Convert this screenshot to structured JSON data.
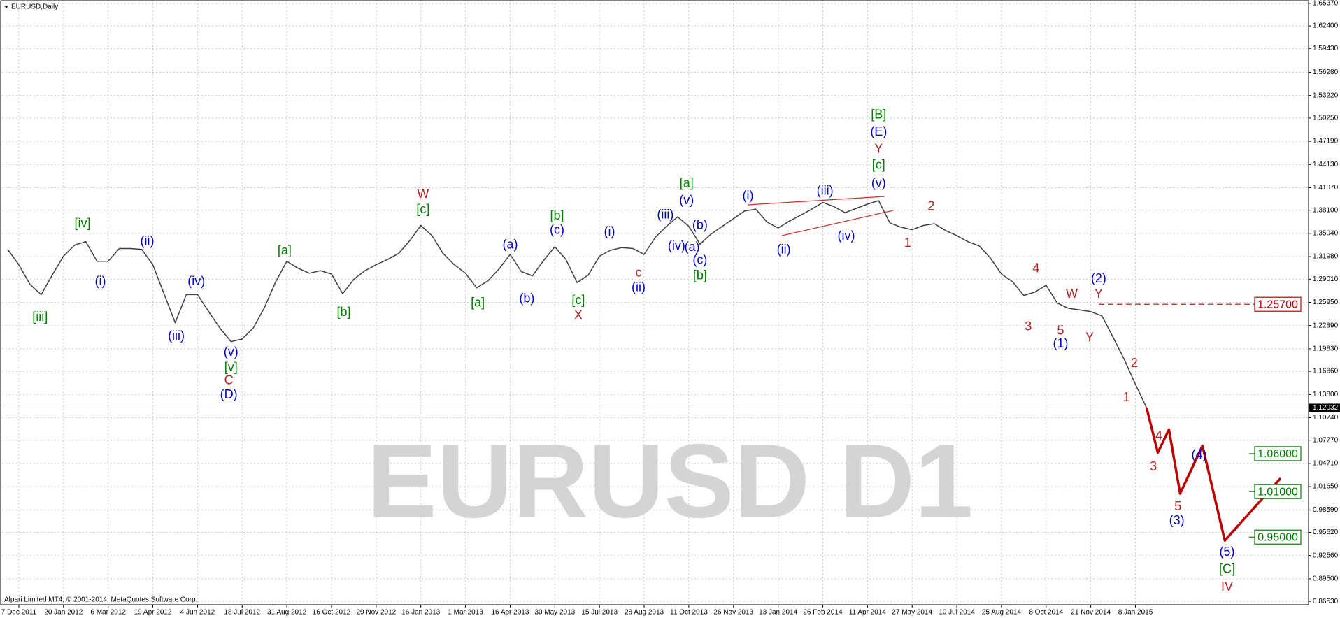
{
  "chart_data": {
    "type": "line",
    "title": "EURUSD,Daily",
    "watermark": "EURUSD D1",
    "footer": "Alpari Limited MT4, © 2001-2014, MetaQuotes Software Corp.",
    "categories": [
      null,
      "7 Dec 2011",
      null,
      null,
      null,
      "20 Jan 2012",
      null,
      null,
      null,
      "6 Mar 2012",
      null,
      null,
      null,
      "19 Apr 2012",
      null,
      null,
      null,
      "4 Jun 2012",
      null,
      null,
      null,
      "18 Jul 2012",
      null,
      null,
      null,
      "31 Aug 2012",
      null,
      null,
      null,
      "16 Oct 2012",
      null,
      null,
      null,
      "29 Nov 2012",
      null,
      null,
      null,
      "16 Jan 2013",
      null,
      null,
      null,
      "1 Mar 2013",
      null,
      null,
      null,
      "16 Apr 2013",
      null,
      null,
      null,
      "30 May 2013",
      null,
      null,
      null,
      "15 Jul 2013",
      null,
      null,
      null,
      "28 Aug 2013",
      null,
      null,
      null,
      "11 Oct 2013",
      null,
      null,
      null,
      "26 Nov 2013",
      null,
      null,
      null,
      "13 Jan 2014",
      null,
      null,
      null,
      "26 Feb 2014",
      null,
      null,
      null,
      "11 Apr 2014",
      null,
      null,
      null,
      "27 May 2014",
      null,
      null,
      null,
      "10 Jul 2014",
      null,
      null,
      null,
      "25 Aug 2014",
      null,
      null,
      null,
      "8 Oct 2014",
      null,
      null,
      null,
      "21 Nov 2014",
      null,
      null,
      null,
      "8 Jan 2015",
      null,
      null,
      null,
      null,
      null,
      null,
      null,
      null,
      null,
      null,
      null,
      null,
      null,
      null,
      null
    ],
    "series": [
      {
        "color": "#404040",
        "width": 1.5,
        "values": [
          1.3294,
          1.3091,
          1.2832,
          1.2697,
          1.2956,
          1.3204,
          1.335,
          1.3395,
          1.3136,
          1.3136,
          1.3305,
          1.3305,
          1.3294,
          1.3091,
          1.2709,
          1.2326,
          1.2697,
          1.2697,
          1.2472,
          1.2258,
          1.2078,
          1.2112,
          1.2258,
          1.2528,
          1.2866,
          1.3136,
          1.3046,
          1.2979,
          1.3013,
          1.2968,
          1.2709,
          1.29,
          1.3013,
          1.3091,
          1.3159,
          1.3238,
          1.3407,
          1.3609,
          1.3474,
          1.3238,
          1.3091,
          1.2979,
          1.2787,
          1.2877,
          1.3035,
          1.3227,
          1.3001,
          1.2945,
          1.3148,
          1.3328,
          1.3159,
          1.2855,
          1.2956,
          1.3204,
          1.3283,
          1.3317,
          1.3305,
          1.3227,
          1.3452,
          1.3598,
          1.3722,
          1.3598,
          1.3362,
          1.3497,
          1.3598,
          1.3699,
          1.3801,
          1.3823,
          1.3654,
          1.3576,
          1.3666,
          1.3744,
          1.3823,
          1.3913,
          1.3857,
          1.3778,
          1.3835,
          1.3891,
          1.3936,
          1.3643,
          1.3587,
          1.3553,
          1.3609,
          1.3632,
          1.3542,
          1.3474,
          1.3395,
          1.3339,
          1.3181,
          1.2968,
          1.2866,
          1.2686,
          1.2731,
          1.2821,
          1.2585,
          1.2517,
          1.2495,
          1.2472,
          1.2416,
          1.2134,
          1.1842,
          1.1515,
          1.1203,
          null,
          null,
          null,
          null,
          null,
          null,
          null,
          null,
          null,
          null,
          null,
          null,
          null,
          null
        ]
      },
      {
        "color": "#c00000",
        "width": 3.5,
        "values": [
          null,
          null,
          null,
          null,
          null,
          null,
          null,
          null,
          null,
          null,
          null,
          null,
          null,
          null,
          null,
          null,
          null,
          null,
          null,
          null,
          null,
          null,
          null,
          null,
          null,
          null,
          null,
          null,
          null,
          null,
          null,
          null,
          null,
          null,
          null,
          null,
          null,
          null,
          null,
          null,
          null,
          null,
          null,
          null,
          null,
          null,
          null,
          null,
          null,
          null,
          null,
          null,
          null,
          null,
          null,
          null,
          null,
          null,
          null,
          null,
          null,
          null,
          null,
          null,
          null,
          null,
          null,
          null,
          null,
          null,
          null,
          null,
          null,
          null,
          null,
          null,
          null,
          null,
          null,
          null,
          null,
          null,
          null,
          null,
          null,
          null,
          null,
          null,
          null,
          null,
          null,
          null,
          null,
          null,
          null,
          null,
          null,
          null,
          null,
          null,
          null,
          null,
          1.1203,
          1.0614,
          1.0918,
          1.0074,
          1.0389,
          1.0704,
          1.0079,
          0.9454,
          0.9618,
          0.9783,
          0.9947,
          1.0112,
          1.0276,
          null,
          null
        ]
      }
    ],
    "ylim": [
      0.8608,
      1.6582
    ],
    "yticks": [
      {
        "value": 1.6537,
        "label": "1.65370"
      },
      {
        "value": 1.624,
        "label": "1.62400"
      },
      {
        "value": 1.5943,
        "label": "1.59430"
      },
      {
        "value": 1.5628,
        "label": "1.56280"
      },
      {
        "value": 1.5322,
        "label": "1.53220"
      },
      {
        "value": 1.5025,
        "label": "1.50250"
      },
      {
        "value": 1.4719,
        "label": "1.47190"
      },
      {
        "value": 1.4413,
        "label": "1.44130"
      },
      {
        "value": 1.4107,
        "label": "1.41070"
      },
      {
        "value": 1.381,
        "label": "1.38100"
      },
      {
        "value": 1.3504,
        "label": "1.35040"
      },
      {
        "value": 1.3198,
        "label": "1.31980"
      },
      {
        "value": 1.2901,
        "label": "1.29010"
      },
      {
        "value": 1.2595,
        "label": "1.25950"
      },
      {
        "value": 1.2289,
        "label": "1.22890"
      },
      {
        "value": 1.1983,
        "label": "1.19830"
      },
      {
        "value": 1.1686,
        "label": "1.16860"
      },
      {
        "value": 1.138,
        "label": "1.13800"
      },
      {
        "value": 1.1074,
        "label": "1.10740"
      },
      {
        "value": 1.0777,
        "label": "1.07770"
      },
      {
        "value": 1.0471,
        "label": "1.04710"
      },
      {
        "value": 1.0165,
        "label": "1.01650"
      },
      {
        "value": 0.9859,
        "label": "0.98590"
      },
      {
        "value": 0.9562,
        "label": "0.95620"
      },
      {
        "value": 0.9256,
        "label": "0.92560"
      },
      {
        "value": 0.895,
        "label": "0.89500"
      },
      {
        "value": 0.8653,
        "label": "0.86530"
      }
    ],
    "grid": true,
    "last_price": {
      "value": 1.12032,
      "label": "1.12032"
    },
    "levels": [
      {
        "value": 1.257,
        "label": "1.25700",
        "color": "#c00000",
        "style": "dashed"
      },
      {
        "value": 1.06,
        "label": "1.06000",
        "color": "#008000",
        "style": "solid"
      },
      {
        "value": 1.01,
        "label": "1.01000",
        "color": "#008000",
        "style": "solid"
      },
      {
        "value": 0.95,
        "label": "0.95000",
        "color": "#008000",
        "style": "solid"
      }
    ],
    "annotations": [
      {
        "text": "[iv]",
        "color": "#008000",
        "x": 6.7,
        "y": 1.3632
      },
      {
        "text": "[iii]",
        "color": "#008000",
        "x": 2.9,
        "y": 1.2393
      },
      {
        "text": "(i)",
        "color": "#0000cc",
        "x": 8.3,
        "y": 1.2866
      },
      {
        "text": "(ii)",
        "color": "#0000cc",
        "x": 12.5,
        "y": 1.3395
      },
      {
        "text": "(iii)",
        "color": "#0000cc",
        "x": 15.1,
        "y": 1.2146
      },
      {
        "text": "(iv)",
        "color": "#0000cc",
        "x": 16.9,
        "y": 1.2866
      },
      {
        "text": "(v)",
        "color": "#0000cc",
        "x": 20.0,
        "y": 1.1932
      },
      {
        "text": "[v]",
        "color": "#008000",
        "x": 20.0,
        "y": 1.1729
      },
      {
        "text": "C",
        "color": "#b22222",
        "x": 19.8,
        "y": 1.156
      },
      {
        "text": "(D)",
        "color": "#0000cc",
        "x": 19.8,
        "y": 1.1369
      },
      {
        "text": "[a]",
        "color": "#008000",
        "x": 24.8,
        "y": 1.3272
      },
      {
        "text": "[b]",
        "color": "#008000",
        "x": 30.1,
        "y": 1.2461
      },
      {
        "text": "W",
        "color": "#b22222",
        "x": 37.2,
        "y": 1.4015
      },
      {
        "text": "[c]",
        "color": "#008000",
        "x": 37.2,
        "y": 1.3812
      },
      {
        "text": "[a]",
        "color": "#008000",
        "x": 42.1,
        "y": 1.2585
      },
      {
        "text": "(a)",
        "color": "#0000cc",
        "x": 45.0,
        "y": 1.335
      },
      {
        "text": "(b)",
        "color": "#0000cc",
        "x": 46.5,
        "y": 1.2641
      },
      {
        "text": "[b]",
        "color": "#008000",
        "x": 49.2,
        "y": 1.3733
      },
      {
        "text": "(c)",
        "color": "#0000cc",
        "x": 49.2,
        "y": 1.3542
      },
      {
        "text": "[c]",
        "color": "#008000",
        "x": 51.1,
        "y": 1.2618
      },
      {
        "text": "X",
        "color": "#b22222",
        "x": 51.1,
        "y": 1.2416
      },
      {
        "text": "(i)",
        "color": "#0000cc",
        "x": 53.9,
        "y": 1.3519
      },
      {
        "text": "c",
        "color": "#b22222",
        "x": 56.5,
        "y": 1.2979
      },
      {
        "text": "(ii)",
        "color": "#0000cc",
        "x": 56.5,
        "y": 1.2787
      },
      {
        "text": "(iii)",
        "color": "#0000cc",
        "x": 58.9,
        "y": 1.3744
      },
      {
        "text": "[a]",
        "color": "#008000",
        "x": 60.8,
        "y": 1.4161
      },
      {
        "text": "(v)",
        "color": "#0000cc",
        "x": 60.8,
        "y": 1.3936
      },
      {
        "text": "(iv)",
        "color": "#0000cc",
        "x": 59.9,
        "y": 1.3328
      },
      {
        "text": "(b)",
        "color": "#0000cc",
        "x": 62.0,
        "y": 1.3609
      },
      {
        "text": "(a)",
        "color": "#0000cc",
        "x": 61.3,
        "y": 1.3317
      },
      {
        "text": "(c)",
        "color": "#0000cc",
        "x": 62.0,
        "y": 1.3148
      },
      {
        "text": "[b]",
        "color": "#008000",
        "x": 62.0,
        "y": 1.2945
      },
      {
        "text": "(i)",
        "color": "#0000cc",
        "x": 66.3,
        "y": 1.3992
      },
      {
        "text": "(ii)",
        "color": "#0000cc",
        "x": 69.5,
        "y": 1.3283
      },
      {
        "text": "(iii)",
        "color": "#0000cc",
        "x": 73.2,
        "y": 1.406
      },
      {
        "text": "(iv)",
        "color": "#0000cc",
        "x": 75.1,
        "y": 1.3463
      },
      {
        "text": "(v)",
        "color": "#0000cc",
        "x": 78.0,
        "y": 1.4161
      },
      {
        "text": "[c]",
        "color": "#008000",
        "x": 78.0,
        "y": 1.4398
      },
      {
        "text": "Y",
        "color": "#b22222",
        "x": 78.0,
        "y": 1.4611
      },
      {
        "text": "(E)",
        "color": "#0000cc",
        "x": 78.0,
        "y": 1.4837
      },
      {
        "text": "[B]",
        "color": "#008000",
        "x": 78.0,
        "y": 1.5062
      },
      {
        "text": "1",
        "color": "#b22222",
        "x": 80.6,
        "y": 1.3373
      },
      {
        "text": "2",
        "color": "#b22222",
        "x": 82.7,
        "y": 1.3857
      },
      {
        "text": "3",
        "color": "#b22222",
        "x": 91.4,
        "y": 1.2269
      },
      {
        "text": "4",
        "color": "#b22222",
        "x": 92.1,
        "y": 1.3035
      },
      {
        "text": "5",
        "color": "#b22222",
        "x": 94.3,
        "y": 1.2213
      },
      {
        "text": "(1)",
        "color": "#0000cc",
        "x": 94.3,
        "y": 1.2044
      },
      {
        "text": "W",
        "color": "#b22222",
        "x": 95.3,
        "y": 1.2697
      },
      {
        "text": "(2)",
        "color": "#0000cc",
        "x": 97.7,
        "y": 1.29
      },
      {
        "text": "Y",
        "color": "#b22222",
        "x": 97.7,
        "y": 1.2697
      },
      {
        "text": "Y",
        "color": "#b22222",
        "x": 96.9,
        "y": 1.2123
      },
      {
        "text": "2",
        "color": "#b22222",
        "x": 100.9,
        "y": 1.1785
      },
      {
        "text": "1",
        "color": "#b22222",
        "x": 100.2,
        "y": 1.1335
      },
      {
        "text": "4",
        "color": "#b22222",
        "x": 103.1,
        "y": 1.0828
      },
      {
        "text": "3",
        "color": "#b22222",
        "x": 102.6,
        "y": 1.0423
      },
      {
        "text": "5",
        "color": "#b22222",
        "x": 104.8,
        "y": 0.9894
      },
      {
        "text": "(3)",
        "color": "#0000cc",
        "x": 104.7,
        "y": 0.9713
      },
      {
        "text": "(4)",
        "color": "#0000cc",
        "x": 106.7,
        "y": 1.058
      },
      {
        "text": "(5)",
        "color": "#0000cc",
        "x": 109.2,
        "y": 0.9297
      },
      {
        "text": "[C]",
        "color": "#008000",
        "x": 109.2,
        "y": 0.9072
      },
      {
        "text": "IV",
        "color": "#b22222",
        "x": 109.2,
        "y": 0.8835
      }
    ]
  }
}
